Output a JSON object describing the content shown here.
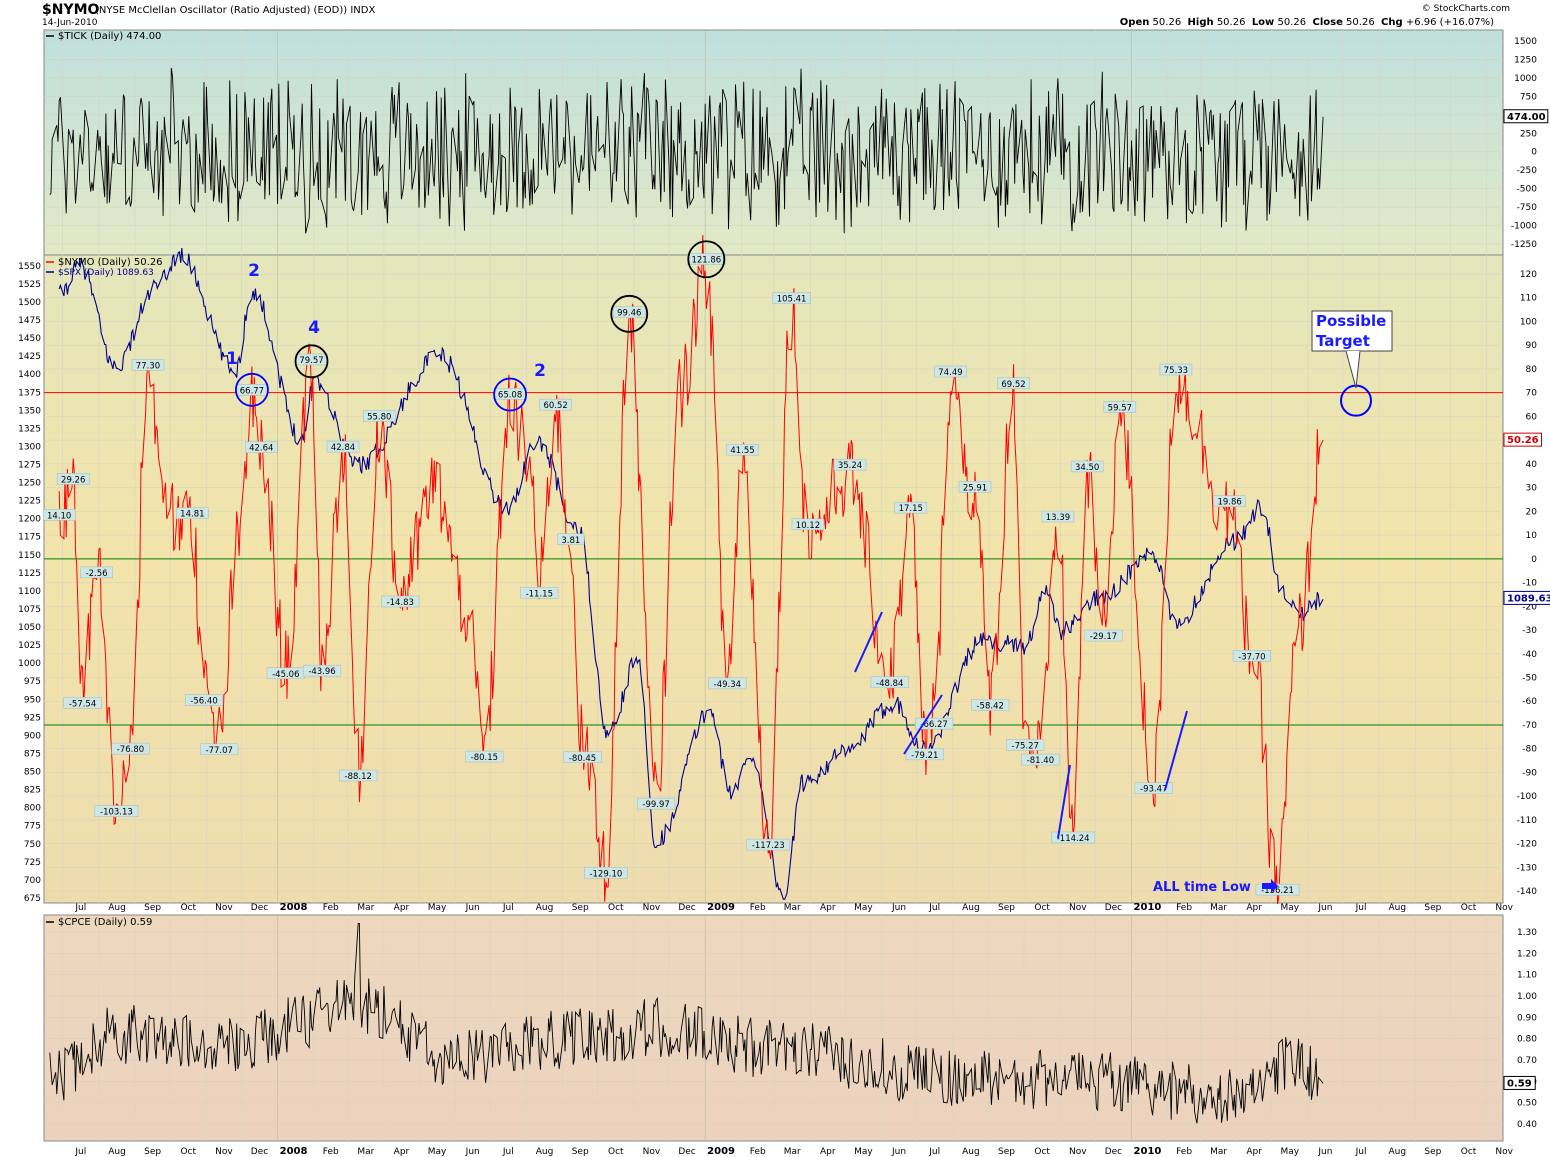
{
  "header": {
    "symbol": "$NYMO",
    "description": "(NYSE McClellan Oscillator (Ratio Adjusted) (EOD)) INDX",
    "date": "14-Jun-2010",
    "brand": "© StockCharts.com",
    "open_label": "Open",
    "open": "50.26",
    "high_label": "High",
    "high": "50.26",
    "low_label": "Low",
    "low": "50.26",
    "close_label": "Close",
    "close": "50.26",
    "chg_label": "Chg",
    "chg": "+6.96 (+16.07%)"
  },
  "months": [
    "Jul",
    "Aug",
    "Sep",
    "Oct",
    "Nov",
    "Dec",
    "2008",
    "Feb",
    "Mar",
    "Apr",
    "May",
    "Jun",
    "Jul",
    "Aug",
    "Sep",
    "Oct",
    "Nov",
    "Dec",
    "2009",
    "Feb",
    "Mar",
    "Apr",
    "May",
    "Jun",
    "Jul",
    "Aug",
    "Sep",
    "Oct",
    "Nov",
    "Dec",
    "2010",
    "Feb",
    "Mar",
    "Apr",
    "May",
    "Jun",
    "Jul",
    "Aug",
    "Sep",
    "Oct",
    "Nov"
  ],
  "chart_data": [
    {
      "type": "line",
      "legend": "$TICK (Daily) 474.00",
      "last_value_label": "474.00",
      "ylim": [
        -1400,
        1650
      ],
      "y_ticks": [
        1500,
        1250,
        1000,
        750,
        500,
        250,
        0,
        -250,
        -500,
        -750,
        -1000,
        -1250
      ],
      "y_tick_labels": [
        "1500",
        "1250",
        "1000",
        "750",
        "500",
        "250",
        "0",
        "-250",
        "-500",
        "-750",
        "-1000",
        "-1250"
      ],
      "colors": {
        "line": "#000000"
      },
      "series": [
        {
          "name": "$TICK",
          "description": "Daily NYSE TICK oscillating roughly between -1300 and +1600 from Jun-2007 to Jun-2010"
        }
      ]
    },
    {
      "type": "line",
      "legend": [
        "$NYMO (Daily) 50.26",
        "$SPX (Daily) 1089.63"
      ],
      "left_axis": {
        "label": "$SPX",
        "ticks": [
          1550,
          1525,
          1500,
          1475,
          1450,
          1425,
          1400,
          1375,
          1350,
          1325,
          1300,
          1275,
          1250,
          1225,
          1200,
          1175,
          1150,
          1125,
          1100,
          1075,
          1050,
          1025,
          1000,
          975,
          950,
          925,
          900,
          875,
          850,
          825,
          800,
          775,
          750,
          725,
          700,
          675
        ]
      },
      "right_axis": {
        "label": "$NYMO",
        "ticks": [
          120,
          110,
          100,
          90,
          80,
          70,
          60,
          50,
          40,
          30,
          20,
          10,
          0,
          -10,
          -20,
          -30,
          -40,
          -50,
          -60,
          -70,
          -80,
          -90,
          -100,
          -110,
          -120,
          -130,
          -140
        ]
      },
      "horizontal_lines": [
        {
          "value": 70,
          "color": "#ff0000"
        },
        {
          "value": 0,
          "color": "#008000"
        },
        {
          "value": -70,
          "color": "#008000"
        }
      ],
      "nymo_last_label": "50.26",
      "spx_last_label": "1089.63",
      "colors": {
        "nymo": "#ff0000",
        "spx": "#00008b"
      },
      "nymo_labels": [
        "14.10",
        "29.26",
        "-57.54",
        "-2.56",
        "-103.13",
        "-76.80",
        "77.30",
        "14.81",
        "-56.40",
        "-77.07",
        "66.77",
        "42.64",
        "-45.06",
        "79.57",
        "-43.96",
        "42.84",
        "55.80",
        "-88.12",
        "-14.83",
        "65.08",
        "-80.15",
        "60.52",
        "-11.15",
        "3.81",
        "-80.45",
        "-129.10",
        "99.46",
        "-99.97",
        "121.86",
        "41.55",
        "-49.34",
        "105.41",
        "10.12",
        "-117.23",
        "35.24",
        "-48.84",
        "17.15",
        "-79.21",
        "-66.27",
        "74.49",
        "25.91",
        "-58.42",
        "69.52",
        "-75.27",
        "13.39",
        "-81.40",
        "34.50",
        "-114.24",
        "-29.17",
        "59.57",
        "75.33",
        "-93.47",
        "19.86",
        "-37.70",
        "-136.21"
      ],
      "nymo_series_points": [
        [
          "2007-06-28",
          14
        ],
        [
          "2007-07-10",
          29
        ],
        [
          "2007-07-18",
          -58
        ],
        [
          "2007-07-30",
          -3
        ],
        [
          "2007-08-16",
          -103
        ],
        [
          "2007-08-28",
          -77
        ],
        [
          "2007-09-12",
          77
        ],
        [
          "2007-09-28",
          20
        ],
        [
          "2007-10-20",
          15
        ],
        [
          "2007-10-30",
          -56
        ],
        [
          "2007-11-12",
          -77
        ],
        [
          "2007-11-28",
          5
        ],
        [
          "2007-12-10",
          67
        ],
        [
          "2007-12-18",
          43
        ],
        [
          "2008-01-08",
          -45
        ],
        [
          "2008-01-30",
          80
        ],
        [
          "2008-02-08",
          -44
        ],
        [
          "2008-02-26",
          43
        ],
        [
          "2008-03-10",
          -88
        ],
        [
          "2008-03-28",
          56
        ],
        [
          "2008-04-15",
          -15
        ],
        [
          "2008-05-15",
          30
        ],
        [
          "2008-06-10",
          -20
        ],
        [
          "2008-06-26",
          -80
        ],
        [
          "2008-07-18",
          65
        ],
        [
          "2008-08-04",
          40
        ],
        [
          "2008-08-12",
          -11
        ],
        [
          "2008-08-26",
          61
        ],
        [
          "2008-09-08",
          4
        ],
        [
          "2008-09-18",
          -80
        ],
        [
          "2008-10-08",
          -129
        ],
        [
          "2008-10-28",
          99
        ],
        [
          "2008-11-20",
          -100
        ],
        [
          "2008-12-10",
          70
        ],
        [
          "2009-01-02",
          122
        ],
        [
          "2009-01-20",
          -49
        ],
        [
          "2009-02-02",
          42
        ],
        [
          "2009-02-24",
          -117
        ],
        [
          "2009-03-16",
          105
        ],
        [
          "2009-03-30",
          10
        ],
        [
          "2009-05-05",
          35
        ],
        [
          "2009-06-08",
          -49
        ],
        [
          "2009-06-26",
          17
        ],
        [
          "2009-07-08",
          -79
        ],
        [
          "2009-07-16",
          -66
        ],
        [
          "2009-07-30",
          74
        ],
        [
          "2009-08-20",
          26
        ],
        [
          "2009-09-02",
          -58
        ],
        [
          "2009-09-22",
          70
        ],
        [
          "2009-10-02",
          -75
        ],
        [
          "2009-10-15",
          -81
        ],
        [
          "2009-10-30",
          13
        ],
        [
          "2009-11-12",
          -114
        ],
        [
          "2009-11-24",
          35
        ],
        [
          "2009-12-08",
          -29
        ],
        [
          "2009-12-22",
          60
        ],
        [
          "2010-01-20",
          -93
        ],
        [
          "2010-02-08",
          75
        ],
        [
          "2010-03-26",
          20
        ],
        [
          "2010-04-14",
          -38
        ],
        [
          "2010-05-06",
          -136
        ],
        [
          "2010-05-24",
          -30
        ],
        [
          "2010-06-14",
          50
        ]
      ],
      "spx_series_points": [
        [
          "2007-06-28",
          1510
        ],
        [
          "2007-07-16",
          1550
        ],
        [
          "2007-08-15",
          1410
        ],
        [
          "2007-09-19",
          1520
        ],
        [
          "2007-10-09",
          1565
        ],
        [
          "2007-11-26",
          1405
        ],
        [
          "2007-12-10",
          1515
        ],
        [
          "2008-01-22",
          1310
        ],
        [
          "2008-02-01",
          1395
        ],
        [
          "2008-03-10",
          1275
        ],
        [
          "2008-05-19",
          1425
        ],
        [
          "2008-07-15",
          1215
        ],
        [
          "2008-08-11",
          1305
        ],
        [
          "2008-09-15",
          1180
        ],
        [
          "2008-10-10",
          900
        ],
        [
          "2008-11-04",
          1005
        ],
        [
          "2008-11-20",
          752
        ],
        [
          "2009-01-06",
          935
        ],
        [
          "2009-01-22",
          820
        ],
        [
          "2009-02-10",
          870
        ],
        [
          "2009-03-09",
          677
        ],
        [
          "2009-03-26",
          835
        ],
        [
          "2009-04-30",
          875
        ],
        [
          "2009-06-12",
          945
        ],
        [
          "2009-07-08",
          880
        ],
        [
          "2009-08-26",
          1030
        ],
        [
          "2009-10-02",
          1025
        ],
        [
          "2009-10-19",
          1097
        ],
        [
          "2009-11-02",
          1045
        ],
        [
          "2009-12-08",
          1095
        ],
        [
          "2010-01-19",
          1150
        ],
        [
          "2010-02-08",
          1056
        ],
        [
          "2010-03-31",
          1170
        ],
        [
          "2010-04-23",
          1217
        ],
        [
          "2010-05-07",
          1110
        ],
        [
          "2010-05-25",
          1065
        ],
        [
          "2010-06-14",
          1090
        ]
      ]
    },
    {
      "type": "line",
      "legend": "$CPCE (Daily) 0.59",
      "last_value_label": "0.59",
      "ylim": [
        0.32,
        1.38
      ],
      "y_ticks": [
        1.3,
        1.2,
        1.1,
        1.0,
        0.9,
        0.8,
        0.7,
        0.6,
        0.5,
        0.4
      ],
      "y_tick_labels": [
        "1.30",
        "1.20",
        "1.10",
        "1.00",
        "0.90",
        "0.80",
        "0.70",
        "0.60",
        "0.50",
        "0.40"
      ],
      "colors": {
        "line": "#000000"
      },
      "series": [
        {
          "name": "$CPCE",
          "description": "Daily CBOE equity put/call ratio mostly between 0.45 and 1.15 with spike to about 1.35 in Mar-2008"
        }
      ]
    }
  ],
  "annotations": {
    "wave_labels": [
      "1",
      "2",
      "4",
      "2"
    ],
    "possible_target": [
      "Possible",
      "Target"
    ],
    "all_time_low": "ALL time Low"
  }
}
